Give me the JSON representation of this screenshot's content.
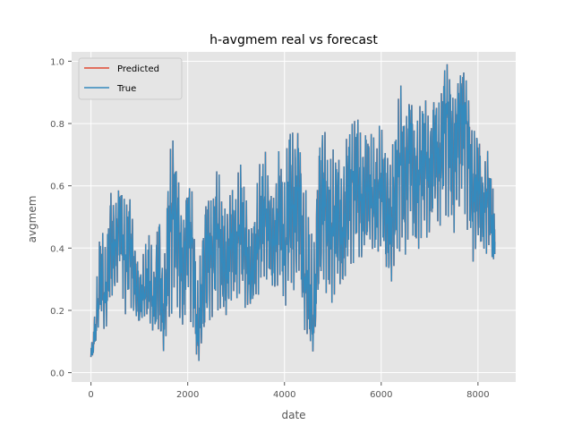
{
  "chart_data": {
    "type": "line",
    "title": "h-avgmem real vs forecast",
    "xlabel": "date",
    "ylabel": "avgmem",
    "xlim": [
      -400,
      8780
    ],
    "ylim": [
      -0.03,
      1.03
    ],
    "xticks": [
      0,
      2000,
      4000,
      6000,
      8000
    ],
    "yticks": [
      0.0,
      0.2,
      0.4,
      0.6,
      0.8,
      1.0
    ],
    "xtick_labels": [
      "0",
      "2000",
      "4000",
      "6000",
      "8000"
    ],
    "ytick_labels": [
      "0.0",
      "0.2",
      "0.4",
      "0.6",
      "0.8",
      "1.0"
    ],
    "grid": true,
    "style": "ggplot",
    "legend_position": "top-left",
    "colors": {
      "plot_background": "#e5e5e5",
      "grid": "#ffffff",
      "Predicted": "#e24a33",
      "True": "#348abd"
    },
    "series": [
      {
        "name": "Predicted",
        "x": [
          0,
          100,
          200,
          300,
          400,
          500,
          600,
          700,
          800,
          900,
          1000,
          1100,
          1200,
          1300,
          1400,
          1500,
          1600,
          1700,
          1800,
          1900,
          2000,
          2100,
          2200,
          2300,
          2400,
          2500,
          2600,
          2700,
          2800,
          2900,
          3000,
          3100,
          3200,
          3300,
          3400,
          3500,
          3600,
          3700,
          3800,
          3900,
          4000,
          4100,
          4200,
          4300,
          4400,
          4500,
          4600,
          4700,
          4800,
          4900,
          5000,
          5100,
          5200,
          5300,
          5400,
          5500,
          5600,
          5700,
          5800,
          5900,
          6000,
          6100,
          6200,
          6300,
          6400,
          6500,
          6600,
          6700,
          6800,
          6900,
          7000,
          7100,
          7200,
          7300,
          7400,
          7500,
          7600,
          7700,
          7800,
          7900,
          8000,
          8100,
          8200,
          8300,
          8350
        ],
        "values": [
          0.05,
          0.12,
          0.3,
          0.22,
          0.42,
          0.38,
          0.55,
          0.35,
          0.48,
          0.3,
          0.22,
          0.25,
          0.28,
          0.2,
          0.35,
          0.15,
          0.4,
          0.58,
          0.48,
          0.3,
          0.55,
          0.4,
          0.08,
          0.25,
          0.45,
          0.38,
          0.52,
          0.35,
          0.3,
          0.45,
          0.38,
          0.5,
          0.4,
          0.28,
          0.35,
          0.48,
          0.52,
          0.45,
          0.4,
          0.55,
          0.35,
          0.58,
          0.5,
          0.62,
          0.3,
          0.22,
          0.12,
          0.42,
          0.6,
          0.48,
          0.45,
          0.55,
          0.38,
          0.58,
          0.62,
          0.68,
          0.5,
          0.6,
          0.55,
          0.52,
          0.62,
          0.5,
          0.45,
          0.58,
          0.72,
          0.6,
          0.82,
          0.55,
          0.65,
          0.75,
          0.6,
          0.78,
          0.65,
          0.88,
          0.82,
          0.68,
          0.85,
          0.9,
          0.75,
          0.55,
          0.62,
          0.5,
          0.6,
          0.48,
          0.42
        ]
      },
      {
        "name": "True",
        "x": [
          0,
          100,
          200,
          300,
          400,
          500,
          600,
          700,
          800,
          900,
          1000,
          1100,
          1200,
          1300,
          1400,
          1500,
          1600,
          1700,
          1800,
          1900,
          2000,
          2100,
          2200,
          2300,
          2400,
          2500,
          2600,
          2700,
          2800,
          2900,
          3000,
          3100,
          3200,
          3300,
          3400,
          3500,
          3600,
          3700,
          3800,
          3900,
          4000,
          4100,
          4200,
          4300,
          4400,
          4500,
          4600,
          4700,
          4800,
          4900,
          5000,
          5100,
          5200,
          5300,
          5400,
          5500,
          5600,
          5700,
          5800,
          5900,
          6000,
          6100,
          6200,
          6300,
          6400,
          6500,
          6600,
          6700,
          6800,
          6900,
          7000,
          7100,
          7200,
          7300,
          7400,
          7500,
          7600,
          7700,
          7800,
          7900,
          8000,
          8100,
          8200,
          8300,
          8350
        ],
        "values": [
          0.05,
          0.12,
          0.3,
          0.22,
          0.42,
          0.38,
          0.55,
          0.35,
          0.48,
          0.3,
          0.22,
          0.25,
          0.28,
          0.2,
          0.35,
          0.15,
          0.4,
          0.58,
          0.48,
          0.3,
          0.55,
          0.4,
          0.08,
          0.25,
          0.45,
          0.38,
          0.52,
          0.35,
          0.3,
          0.45,
          0.38,
          0.5,
          0.4,
          0.28,
          0.35,
          0.48,
          0.52,
          0.45,
          0.4,
          0.55,
          0.35,
          0.58,
          0.5,
          0.62,
          0.3,
          0.22,
          0.12,
          0.42,
          0.6,
          0.48,
          0.45,
          0.55,
          0.38,
          0.58,
          0.62,
          0.68,
          0.5,
          0.6,
          0.55,
          0.52,
          0.62,
          0.5,
          0.45,
          0.58,
          0.72,
          0.6,
          0.82,
          0.55,
          0.65,
          0.75,
          0.6,
          0.78,
          0.65,
          0.88,
          0.82,
          0.68,
          0.85,
          0.9,
          0.75,
          0.55,
          0.62,
          0.5,
          0.6,
          0.48,
          0.42
        ],
        "envelope": {
          "x": [
            0,
            100,
            200,
            300,
            400,
            500,
            600,
            700,
            800,
            900,
            1000,
            1100,
            1200,
            1300,
            1400,
            1500,
            1600,
            1700,
            1800,
            1900,
            2000,
            2100,
            2200,
            2300,
            2400,
            2500,
            2600,
            2700,
            2800,
            2900,
            3000,
            3100,
            3200,
            3300,
            3400,
            3500,
            3600,
            3700,
            3800,
            3900,
            4000,
            4100,
            4200,
            4300,
            4400,
            4500,
            4600,
            4700,
            4800,
            4900,
            5000,
            5100,
            5200,
            5300,
            5400,
            5500,
            5600,
            5700,
            5800,
            5900,
            6000,
            6100,
            6200,
            6300,
            6400,
            6500,
            6600,
            6700,
            6800,
            6900,
            7000,
            7100,
            7200,
            7300,
            7400,
            7500,
            7600,
            7700,
            7800,
            7900,
            8000,
            8100,
            8200,
            8300,
            8350
          ],
          "low": [
            0.02,
            0.1,
            0.18,
            0.12,
            0.2,
            0.24,
            0.3,
            0.18,
            0.2,
            0.16,
            0.14,
            0.18,
            0.16,
            0.12,
            0.08,
            0.06,
            0.12,
            0.22,
            0.15,
            0.1,
            0.18,
            0.14,
            0.02,
            0.06,
            0.1,
            0.16,
            0.2,
            0.18,
            0.16,
            0.2,
            0.22,
            0.26,
            0.18,
            0.2,
            0.22,
            0.26,
            0.3,
            0.26,
            0.22,
            0.28,
            0.2,
            0.26,
            0.22,
            0.26,
            0.14,
            0.1,
            0.06,
            0.22,
            0.26,
            0.22,
            0.22,
            0.24,
            0.26,
            0.3,
            0.34,
            0.36,
            0.34,
            0.38,
            0.4,
            0.36,
            0.4,
            0.3,
            0.26,
            0.34,
            0.4,
            0.34,
            0.42,
            0.36,
            0.4,
            0.44,
            0.4,
            0.48,
            0.44,
            0.52,
            0.46,
            0.4,
            0.48,
            0.5,
            0.44,
            0.34,
            0.38,
            0.36,
            0.38,
            0.36,
            0.36
          ],
          "high": [
            0.08,
            0.25,
            0.52,
            0.4,
            0.62,
            0.56,
            0.62,
            0.55,
            0.58,
            0.45,
            0.35,
            0.4,
            0.48,
            0.35,
            0.58,
            0.3,
            0.7,
            0.76,
            0.65,
            0.5,
            0.62,
            0.58,
            0.3,
            0.48,
            0.62,
            0.55,
            0.66,
            0.62,
            0.55,
            0.62,
            0.6,
            0.7,
            0.58,
            0.5,
            0.58,
            0.7,
            0.72,
            0.62,
            0.6,
            0.76,
            0.62,
            0.85,
            0.78,
            0.82,
            0.6,
            0.58,
            0.4,
            0.8,
            0.84,
            0.7,
            0.72,
            0.74,
            0.66,
            0.82,
            0.8,
            0.86,
            0.76,
            0.84,
            0.78,
            0.76,
            0.82,
            0.76,
            0.72,
            0.82,
            0.94,
            0.82,
            0.92,
            0.82,
            0.86,
            0.9,
            0.82,
            0.92,
            0.88,
            0.98,
            1.0,
            0.9,
            0.96,
            0.99,
            0.9,
            0.78,
            0.84,
            0.66,
            0.72,
            0.62,
            0.48
          ]
        }
      }
    ]
  }
}
